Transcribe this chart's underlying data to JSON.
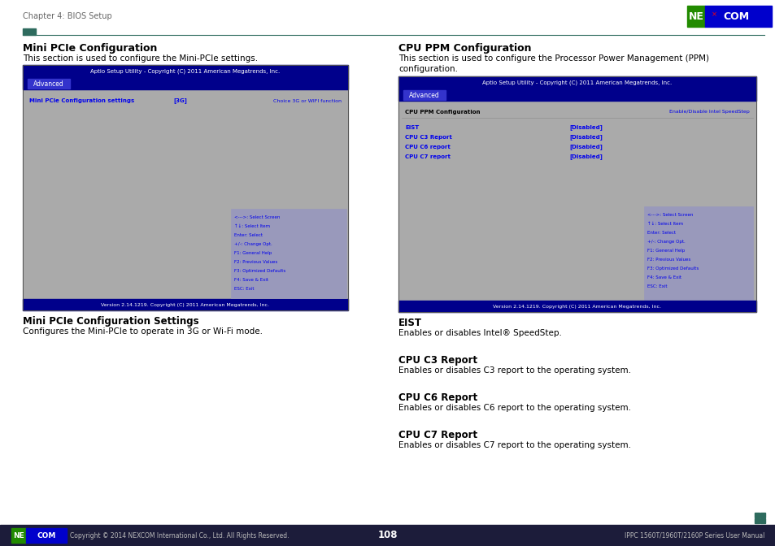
{
  "page_header": "Chapter 4: BIOS Setup",
  "page_number": "108",
  "footer_left": "Copyright © 2014 NEXCOM International Co., Ltd. All Rights Reserved.",
  "footer_right": "IPPC 1560T/1960T/2160P Series User Manual",
  "left_title": "Mini PCIe Configuration",
  "left_intro": "This section is used to configure the Mini-PCIe settings.",
  "left_bios_header": "Aptio Setup Utility - Copyright (C) 2011 American Megatrends, Inc.",
  "left_bios_tab": "Advanced",
  "left_bios_col1": "Mini PCIe Configuration settings",
  "left_bios_col1_val": "[3G]",
  "left_bios_col2": "Choice 3G or WIFI function",
  "left_bios_help": [
    "<--->: Select Screen",
    "↑↓: Select Item",
    "Enter: Select",
    "+/-: Change Opt.",
    "F1: General Help",
    "F2: Previous Values",
    "F3: Optimized Defaults",
    "F4: Save & Exit",
    "ESC: Exit"
  ],
  "left_bios_version": "Version 2.14.1219. Copyright (C) 2011 American Megatrends, Inc.",
  "left_sub_title": "Mini PCIe Configuration Settings",
  "left_sub_text": "Configures the Mini-PCIe to operate in 3G or Wi-Fi mode.",
  "right_title": "CPU PPM Configuration",
  "right_intro1": "This section is used to configure the Processor Power Management (PPM)",
  "right_intro2": "configuration.",
  "right_bios_header": "Aptio Setup Utility - Copyright (C) 2011 American Megatrends, Inc.",
  "right_bios_tab": "Advanced",
  "right_bios_section": "CPU PPM Configuration",
  "right_bios_col2": "Enable/Disable Intel SpeedStep",
  "right_bios_items": [
    [
      "EIST",
      "[Disabled]"
    ],
    [
      "CPU C3 Report",
      "[Disabled]"
    ],
    [
      "CPU C6 report",
      "[Disabled]"
    ],
    [
      "CPU C7 report",
      "[Disabled]"
    ]
  ],
  "right_bios_help": [
    "<--->: Select Screen",
    "↑↓: Select Item",
    "Enter: Select",
    "+/-: Change Opt.",
    "F1: General Help",
    "F2: Previous Values",
    "F3: Optimized Defaults",
    "F4: Save & Exit",
    "ESC: Exit"
  ],
  "right_bios_version": "Version 2.14.1219. Copyright (C) 2011 American Megatrends, Inc.",
  "sections_below_right": [
    {
      "title": "EIST",
      "text": "Enables or disables Intel® SpeedStep."
    },
    {
      "title": "CPU C3 Report",
      "text": "Enables or disables C3 report to the operating system."
    },
    {
      "title": "CPU C6 Report",
      "text": "Enables or disables C6 report to the operating system."
    },
    {
      "title": "CPU C7 Report",
      "text": "Enables or disables C7 report to the operating system."
    }
  ],
  "colors": {
    "bios_header_bg": "#00008B",
    "bios_tab_bg": "#3333CC",
    "bios_body_bg": "#AAAAAA",
    "bios_text_blue": "#0000EE",
    "bios_version_bg": "#00008B",
    "teal_bar": "#2E6B5E",
    "separator_line": "#2E6B5E",
    "header_text": "#666666",
    "nexcom_green": "#228B00",
    "nexcom_blue": "#0000CC",
    "footer_bg": "#1C1C3A",
    "footer_text": "#BBBBBB",
    "white": "#FFFFFF",
    "black": "#000000",
    "help_panel_bg": "#9999BB",
    "bios_border": "#555555"
  }
}
